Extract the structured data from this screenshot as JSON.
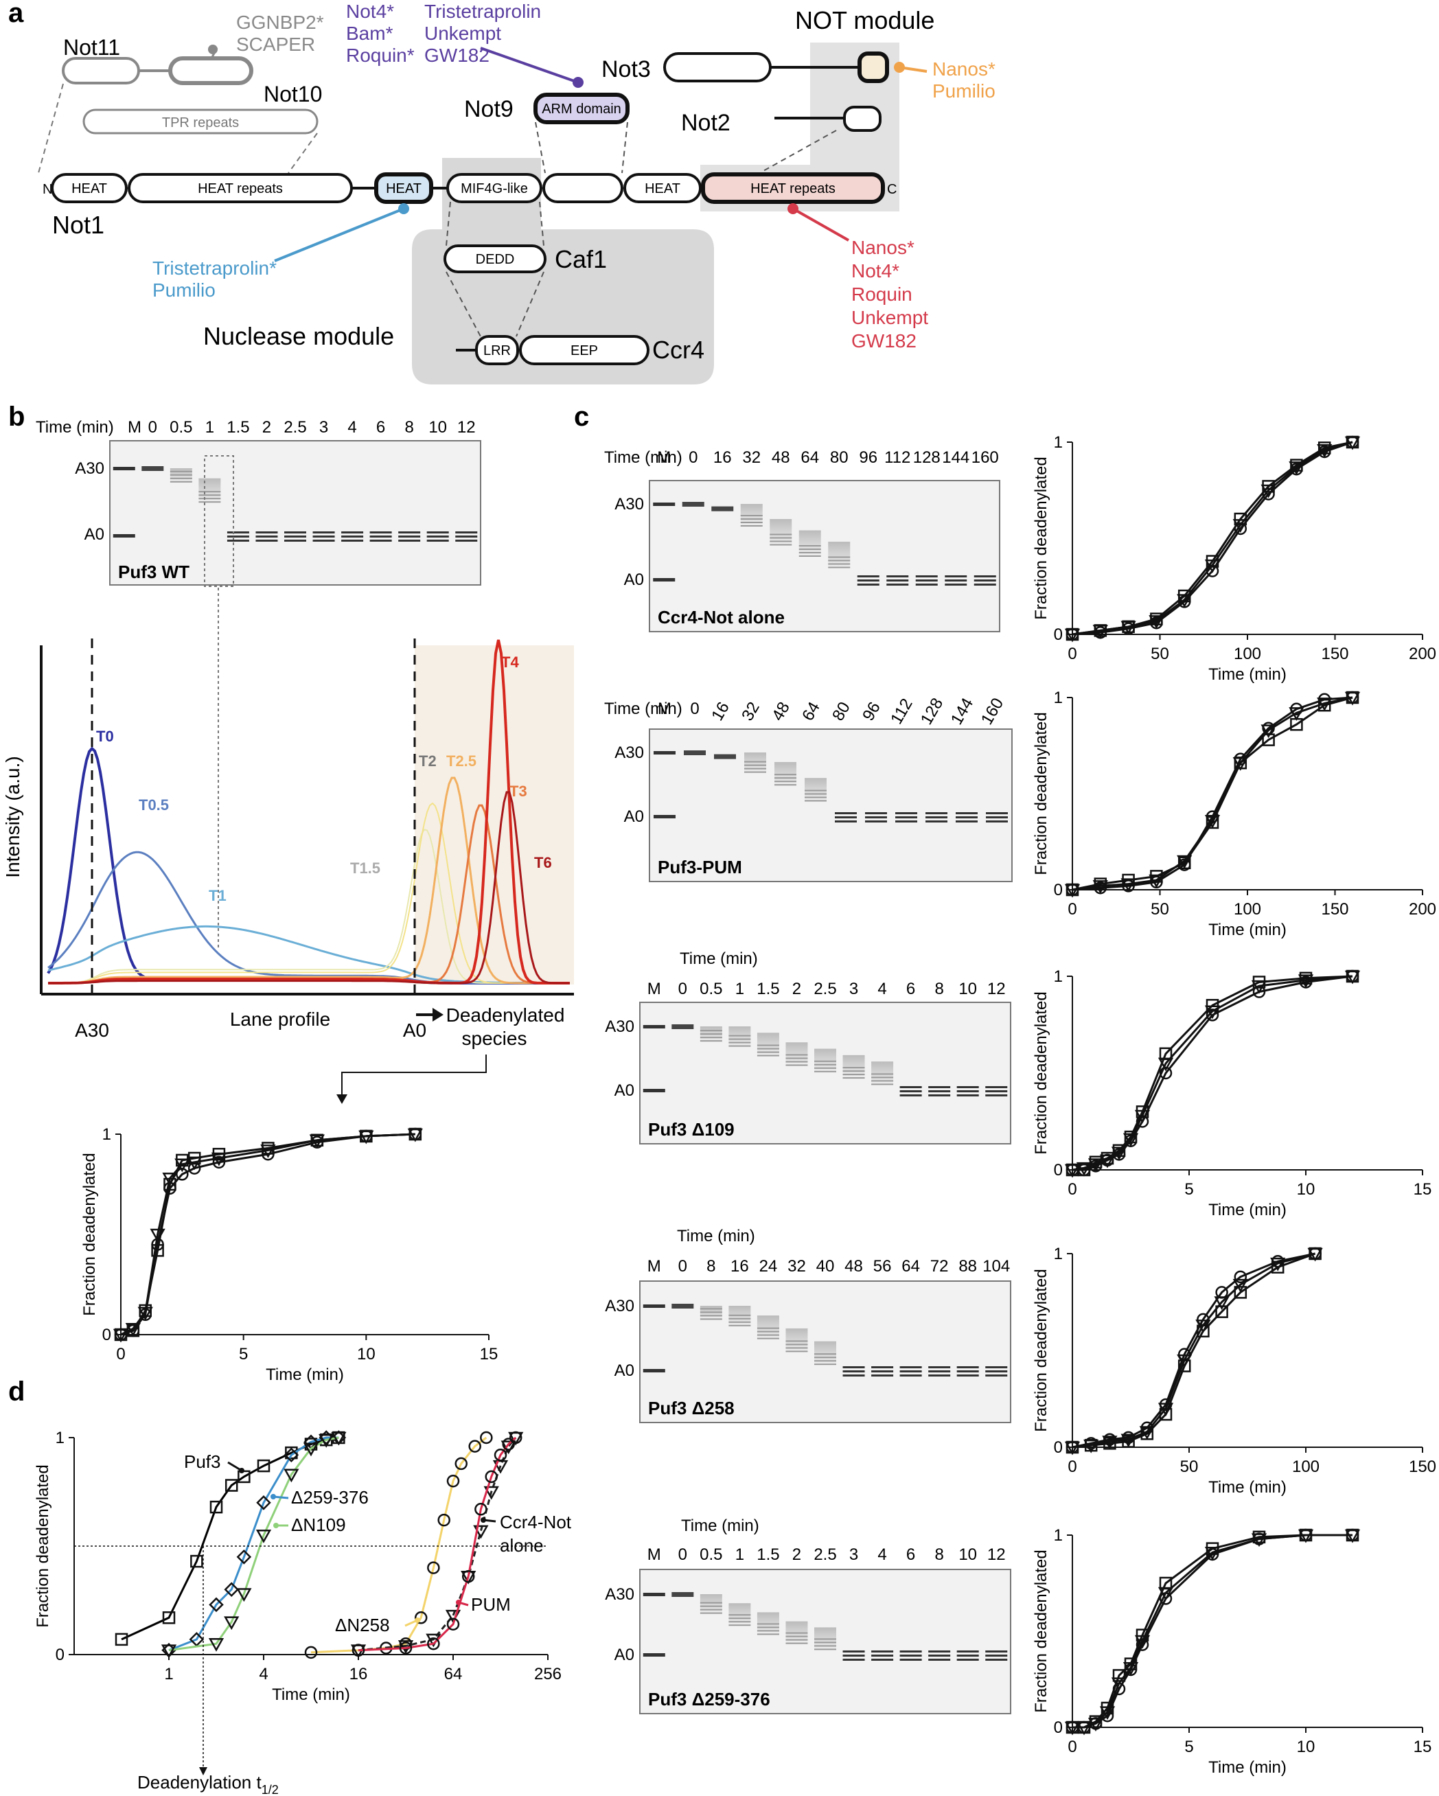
{
  "panel_labels": [
    "a",
    "b",
    "c",
    "d"
  ],
  "panel_a": {
    "not11": "Not11",
    "not10": "Not10",
    "tpr": "TPR repeats",
    "ggn": [
      "GGNBP2*",
      "SCAPER"
    ],
    "purple": [
      "Not4*",
      "Bam*",
      "Roquin*"
    ],
    "purple2": [
      "Tristetraprolin",
      "Unkempt",
      "GW182"
    ],
    "not_module": "NOT module",
    "not3": "Not3",
    "not2": "Not2",
    "not9": "Not9",
    "arm": "ARM domain",
    "nanos_top": [
      "Nanos*",
      "Pumilio"
    ],
    "not1_segments": [
      "HEAT",
      "HEAT repeats",
      "HEAT",
      "MIF4G-like",
      "HEAT",
      "HEAT repeats"
    ],
    "not1": "Not1",
    "n_term": "N",
    "c_term": "C",
    "blue": [
      "Tristetraprolin*",
      "Pumilio"
    ],
    "caf1": "Caf1",
    "dedd": "DEDD",
    "ccr4": "Ccr4",
    "lrr": "LRR",
    "eep": "EEP",
    "nuclease": "Nuclease module",
    "red": [
      "Nanos*",
      "Not4*",
      "Roquin",
      "Unkempt",
      "GW182"
    ],
    "colors": {
      "purple": "#5a3fa0",
      "orange": "#f0a24a",
      "blue": "#4a9acb",
      "red": "#d43a4a",
      "gray": "#8a8a8a",
      "fill_pink": "#f3d6d2",
      "fill_blue": "#d4e6f3",
      "fill_cream": "#f7edd7",
      "fill_arm": "#d9d2ef"
    }
  },
  "gel_common": {
    "time": "Time (min)",
    "m": "M",
    "a30": "A30",
    "a0": "A0"
  },
  "panel_b": {
    "times": [
      "0",
      "0.5",
      "1",
      "1.5",
      "2",
      "2.5",
      "3",
      "4",
      "6",
      "8",
      "10",
      "12"
    ],
    "gel_label": "Puf3 WT",
    "ylabel": "Intensity (a.u.)",
    "xlabel": "Lane profile",
    "a30": "A30",
    "a0": "A0",
    "deadenylated": [
      "Deadenylated",
      "species"
    ],
    "trace_labels": [
      "T0",
      "T0.5",
      "T1",
      "T1.5",
      "T2",
      "T2.5",
      "T3",
      "T4",
      "T6"
    ]
  },
  "panel_c": {
    "rows": [
      {
        "gel_label": "Ccr4-Not alone",
        "times": [
          "0",
          "16",
          "32",
          "48",
          "64",
          "80",
          "96",
          "112",
          "128",
          "144",
          "160"
        ]
      },
      {
        "gel_label": "Puf3-PUM",
        "times": [
          "0",
          "16",
          "32",
          "48",
          "64",
          "80",
          "96",
          "112",
          "128",
          "144",
          "160"
        ]
      },
      {
        "gel_label": "Puf3 Δ109",
        "times": [
          "0",
          "0.5",
          "1",
          "1.5",
          "2",
          "2.5",
          "3",
          "4",
          "6",
          "8",
          "10",
          "12"
        ]
      },
      {
        "gel_label": "Puf3 Δ258",
        "times": [
          "0",
          "8",
          "16",
          "24",
          "32",
          "40",
          "48",
          "56",
          "64",
          "72",
          "88",
          "104"
        ]
      },
      {
        "gel_label": "Puf3 Δ259-376",
        "times": [
          "0",
          "0.5",
          "1",
          "1.5",
          "2",
          "2.5",
          "3",
          "4",
          "6",
          "8",
          "10",
          "12"
        ]
      }
    ]
  },
  "panel_d": {
    "series_labels": [
      "Puf3",
      "Δ259-376",
      "ΔN109",
      "ΔN258",
      "Ccr4-Not",
      "alone",
      "PUM"
    ],
    "t_half": "Deadenylation t",
    "t_half_sub": "1/2",
    "series_colors": {
      "Puf3": "#000000",
      "D259": "#3b8ecb",
      "N109": "#8fd07a",
      "N258": "#f3d36a",
      "Ccr4": "#222222",
      "PUM": "#d8284a"
    }
  },
  "chart_data": [
    {
      "id": "b",
      "type": "scatter",
      "xlabel": "Time (min)",
      "ylabel": "Fraction deadenylated",
      "xlim": [
        0,
        15
      ],
      "ylim": [
        0,
        1
      ],
      "xticks": [
        "0",
        "5",
        "10",
        "15"
      ],
      "yticks": [
        "0",
        "1"
      ],
      "x": [
        0,
        0.5,
        1,
        1.5,
        2,
        2.5,
        3,
        4,
        6,
        8,
        10,
        12
      ],
      "series": [
        {
          "marker": "square",
          "values": [
            0,
            0.02,
            0.12,
            0.42,
            0.75,
            0.87,
            0.88,
            0.9,
            0.93,
            0.97,
            0.99,
            1.0
          ]
        },
        {
          "marker": "circle",
          "values": [
            0,
            0.02,
            0.1,
            0.45,
            0.73,
            0.8,
            0.83,
            0.86,
            0.9,
            0.96,
            0.99,
            1.0
          ]
        },
        {
          "marker": "triangle",
          "values": [
            0,
            0.03,
            0.11,
            0.5,
            0.78,
            0.85,
            0.86,
            0.88,
            0.92,
            0.97,
            0.99,
            1.0
          ]
        }
      ]
    },
    {
      "id": "c1",
      "type": "scatter",
      "xlabel": "Time (min)",
      "ylabel": "Fraction deadenylated",
      "xlim": [
        0,
        200
      ],
      "ylim": [
        0,
        1
      ],
      "xticks": [
        "0",
        "50",
        "100",
        "150",
        "200"
      ],
      "yticks": [
        "0",
        "1"
      ],
      "x": [
        0,
        16,
        32,
        48,
        64,
        80,
        96,
        112,
        128,
        144,
        160
      ],
      "series": [
        {
          "marker": "square",
          "values": [
            0,
            0.02,
            0.04,
            0.08,
            0.2,
            0.38,
            0.6,
            0.77,
            0.88,
            0.97,
            1.0
          ]
        },
        {
          "marker": "circle",
          "values": [
            0,
            0.01,
            0.03,
            0.06,
            0.17,
            0.33,
            0.55,
            0.73,
            0.86,
            0.95,
            1.0
          ]
        },
        {
          "marker": "triangle",
          "values": [
            0,
            0.02,
            0.04,
            0.07,
            0.18,
            0.36,
            0.57,
            0.75,
            0.87,
            0.96,
            1.0
          ]
        }
      ]
    },
    {
      "id": "c2",
      "type": "scatter",
      "xlabel": "Time (min)",
      "ylabel": "Fraction deadenylated",
      "xlim": [
        0,
        200
      ],
      "ylim": [
        0,
        1
      ],
      "xticks": [
        "0",
        "50",
        "100",
        "150",
        "200"
      ],
      "yticks": [
        "0",
        "1"
      ],
      "x": [
        0,
        16,
        32,
        48,
        64,
        80,
        96,
        112,
        128,
        144,
        160
      ],
      "series": [
        {
          "marker": "square",
          "values": [
            0,
            0.03,
            0.05,
            0.07,
            0.14,
            0.35,
            0.66,
            0.78,
            0.86,
            0.96,
            1.0
          ]
        },
        {
          "marker": "circle",
          "values": [
            0,
            0.01,
            0.02,
            0.04,
            0.13,
            0.38,
            0.68,
            0.84,
            0.94,
            0.99,
            1.0
          ]
        },
        {
          "marker": "triangle",
          "values": [
            0,
            0.02,
            0.03,
            0.05,
            0.15,
            0.36,
            0.66,
            0.83,
            0.92,
            0.97,
            1.0
          ]
        }
      ]
    },
    {
      "id": "c3",
      "type": "scatter",
      "xlabel": "Time (min)",
      "ylabel": "Fraction deadenylated",
      "xlim": [
        0,
        15
      ],
      "ylim": [
        0,
        1
      ],
      "xticks": [
        "0",
        "5",
        "10",
        "15"
      ],
      "yticks": [
        "0",
        "1"
      ],
      "x": [
        0,
        0.5,
        1,
        1.5,
        2,
        2.5,
        3,
        4,
        6,
        8,
        10,
        12
      ],
      "series": [
        {
          "marker": "square",
          "values": [
            0,
            0.0,
            0.04,
            0.06,
            0.1,
            0.17,
            0.3,
            0.6,
            0.85,
            0.97,
            0.99,
            1.0
          ]
        },
        {
          "marker": "circle",
          "values": [
            0,
            0.0,
            0.02,
            0.05,
            0.08,
            0.15,
            0.25,
            0.5,
            0.8,
            0.92,
            0.97,
            1.0
          ]
        },
        {
          "marker": "triangle",
          "values": [
            0,
            0.01,
            0.03,
            0.05,
            0.09,
            0.16,
            0.28,
            0.55,
            0.82,
            0.95,
            0.98,
            1.0
          ]
        }
      ]
    },
    {
      "id": "c4",
      "type": "scatter",
      "xlabel": "Time (min)",
      "ylabel": "Fraction deadenylated",
      "xlim": [
        0,
        150
      ],
      "ylim": [
        0,
        1
      ],
      "xticks": [
        "0",
        "50",
        "100",
        "150"
      ],
      "yticks": [
        "0",
        "1"
      ],
      "x": [
        0,
        8,
        16,
        24,
        32,
        40,
        48,
        56,
        64,
        72,
        88,
        104
      ],
      "series": [
        {
          "marker": "square",
          "values": [
            0,
            0.01,
            0.02,
            0.03,
            0.07,
            0.17,
            0.42,
            0.6,
            0.7,
            0.8,
            0.93,
            1.0
          ]
        },
        {
          "marker": "circle",
          "values": [
            0,
            0.02,
            0.04,
            0.05,
            0.1,
            0.22,
            0.48,
            0.66,
            0.8,
            0.88,
            0.96,
            1.0
          ]
        },
        {
          "marker": "triangle",
          "values": [
            0,
            0.01,
            0.03,
            0.04,
            0.08,
            0.2,
            0.45,
            0.63,
            0.75,
            0.84,
            0.95,
            1.0
          ]
        }
      ]
    },
    {
      "id": "c5",
      "type": "scatter",
      "xlabel": "Time (min)",
      "ylabel": "Fraction deadenylated",
      "xlim": [
        0,
        15
      ],
      "ylim": [
        0,
        1
      ],
      "xticks": [
        "0",
        "5",
        "10",
        "15"
      ],
      "yticks": [
        "0",
        "1"
      ],
      "x": [
        0,
        0.5,
        1,
        1.5,
        2,
        2.5,
        3,
        4,
        6,
        8,
        10,
        12
      ],
      "series": [
        {
          "marker": "square",
          "values": [
            0,
            0.0,
            0.03,
            0.1,
            0.27,
            0.33,
            0.48,
            0.75,
            0.93,
            0.99,
            1.0,
            1.0
          ]
        },
        {
          "marker": "circle",
          "values": [
            0,
            0.0,
            0.02,
            0.06,
            0.2,
            0.3,
            0.43,
            0.67,
            0.9,
            0.98,
            1.0,
            1.0
          ]
        },
        {
          "marker": "triangle",
          "values": [
            0,
            0.0,
            0.02,
            0.08,
            0.23,
            0.31,
            0.45,
            0.7,
            0.91,
            0.98,
            1.0,
            1.0
          ]
        }
      ]
    },
    {
      "id": "d",
      "type": "line",
      "xscale": "log2",
      "xlabel": "Time (min)",
      "ylabel": "Fraction deadenylated",
      "xlim": [
        0.25,
        256
      ],
      "ylim": [
        0,
        1
      ],
      "xticks": [
        "1",
        "4",
        "16",
        "64",
        "256"
      ],
      "yticks": [
        "0",
        "1"
      ],
      "series": [
        {
          "name": "Puf3",
          "marker": "square",
          "x": [
            0.5,
            1,
            1.5,
            2,
            2.5,
            3,
            4,
            6,
            8,
            10,
            12
          ],
          "values": [
            0.07,
            0.17,
            0.43,
            0.68,
            0.78,
            0.82,
            0.87,
            0.93,
            0.97,
            0.99,
            1.0
          ]
        },
        {
          "name": "Δ259-376",
          "marker": "diamond",
          "x": [
            1,
            1.5,
            2,
            2.5,
            3,
            4,
            6,
            8,
            10,
            12
          ],
          "values": [
            0.02,
            0.07,
            0.23,
            0.3,
            0.45,
            0.7,
            0.92,
            0.98,
            1.0,
            1.0
          ]
        },
        {
          "name": "ΔN109",
          "marker": "triangle",
          "x": [
            1,
            2,
            2.5,
            3,
            4,
            6,
            8,
            10,
            12
          ],
          "values": [
            0.02,
            0.05,
            0.15,
            0.28,
            0.55,
            0.83,
            0.95,
            0.99,
            1.0
          ]
        },
        {
          "name": "ΔN258",
          "marker": "circle",
          "x": [
            8,
            16,
            24,
            32,
            40,
            48,
            56,
            64,
            72,
            88,
            104
          ],
          "values": [
            0.01,
            0.02,
            0.03,
            0.05,
            0.17,
            0.4,
            0.62,
            0.8,
            0.88,
            0.96,
            1.0
          ]
        },
        {
          "name": "Ccr4-Not alone",
          "marker": "triangle",
          "x": [
            16,
            32,
            48,
            64,
            80,
            96,
            112,
            128,
            144,
            160
          ],
          "values": [
            0.02,
            0.04,
            0.07,
            0.18,
            0.36,
            0.57,
            0.75,
            0.87,
            0.96,
            1.0
          ]
        },
        {
          "name": "PUM",
          "marker": "circle",
          "x": [
            16,
            32,
            48,
            64,
            80,
            96,
            112,
            128,
            144,
            160
          ],
          "values": [
            0.02,
            0.03,
            0.05,
            0.14,
            0.36,
            0.67,
            0.82,
            0.92,
            0.97,
            1.0
          ]
        }
      ]
    }
  ]
}
